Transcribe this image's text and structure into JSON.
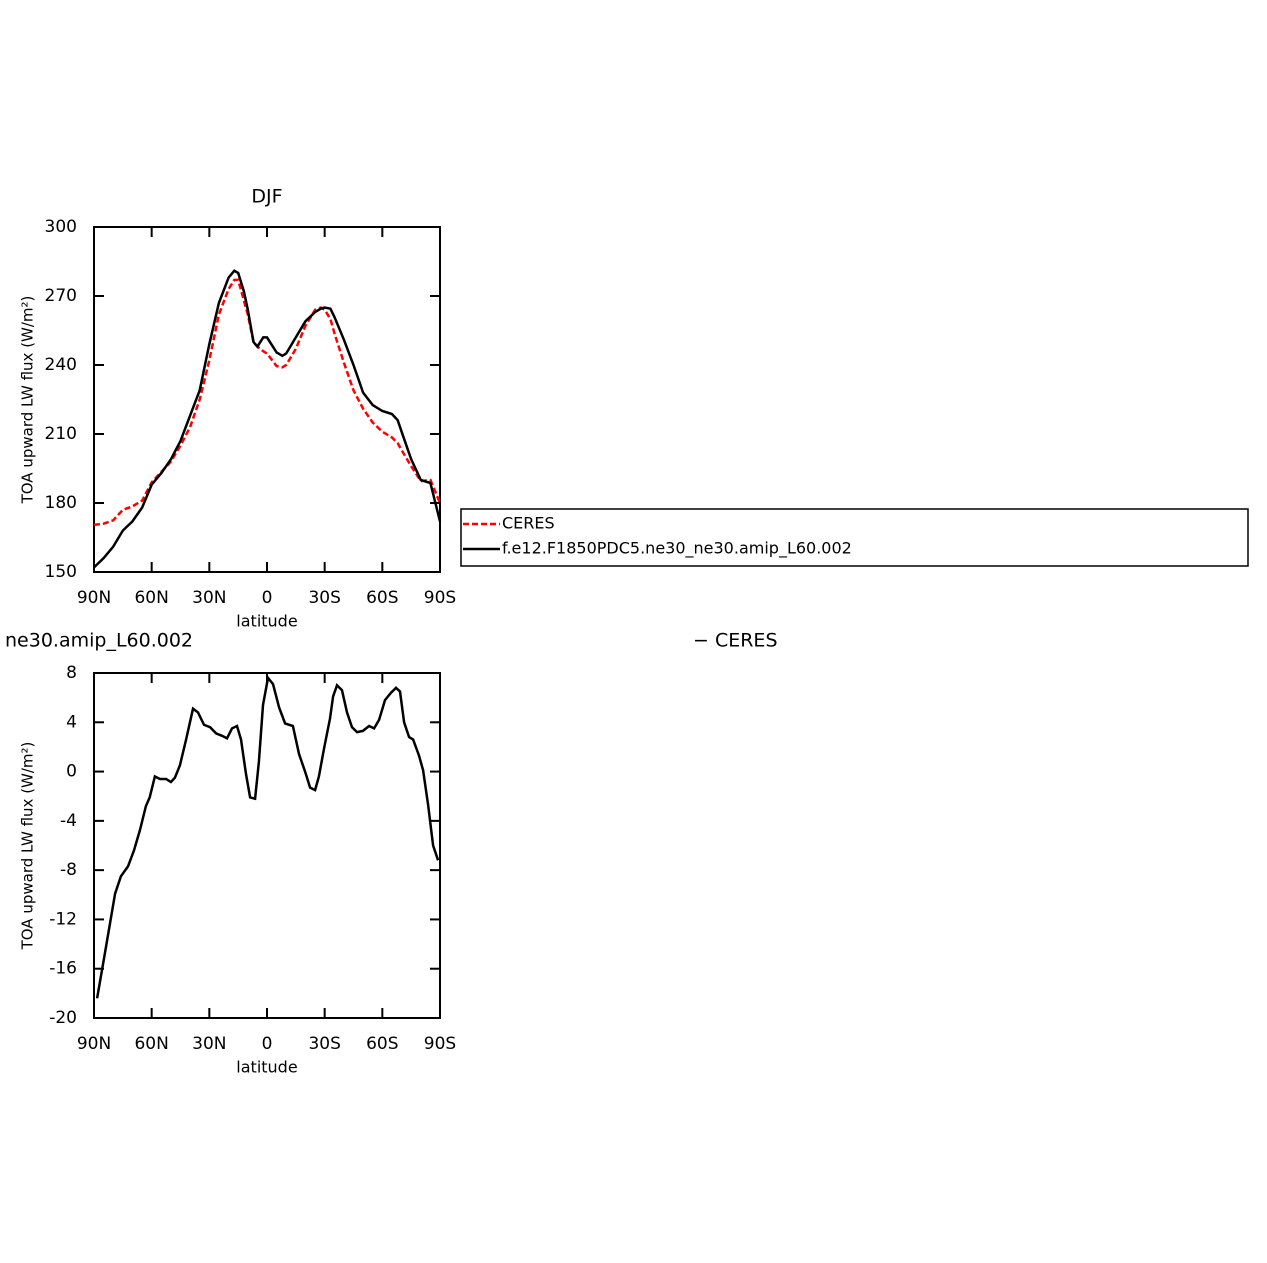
{
  "chart_data": [
    {
      "type": "line",
      "title": "DJF",
      "xlabel": "latitude",
      "ylabel": "TOA upward LW flux (W/m²)",
      "x": [
        90,
        85,
        80,
        75,
        70,
        65,
        60,
        55,
        50,
        45,
        40,
        35,
        30,
        25,
        20,
        17,
        15,
        12,
        10,
        7,
        5,
        2,
        0,
        -5,
        -8,
        -10,
        -15,
        -20,
        -25,
        -28,
        -30,
        -33,
        -35,
        -40,
        -45,
        -50,
        -55,
        -60,
        -65,
        -68,
        -70,
        -75,
        -80,
        -85,
        -90
      ],
      "series": [
        {
          "name": "CERES",
          "color": "#ff0000",
          "dash": true,
          "values": [
            170.5,
            171,
            172.5,
            177,
            178.5,
            181,
            189,
            193.5,
            198,
            205,
            213,
            225,
            242,
            262,
            273,
            277,
            277,
            268,
            262,
            250,
            248,
            246,
            245,
            239.5,
            239,
            240,
            247,
            257,
            264,
            265,
            264,
            260,
            254,
            241,
            229,
            221,
            215,
            211,
            208.5,
            206,
            203,
            196,
            189.5,
            190,
            180
          ]
        },
        {
          "name": "f.e12.F1850PDC5.ne30_ne30.amip_L60.002",
          "color": "#000000",
          "dash": false,
          "values": [
            152,
            156,
            161,
            168,
            172,
            178,
            188,
            193,
            199,
            207,
            218,
            229,
            249,
            267,
            278,
            281,
            280,
            272,
            264,
            250,
            248,
            252,
            252,
            245.5,
            244,
            245,
            252,
            259,
            263,
            264.5,
            265,
            264.5,
            261,
            251,
            240,
            228,
            222.6,
            220,
            218.7,
            216,
            211,
            199,
            190,
            188.7,
            172
          ]
        }
      ],
      "xlim": [
        90,
        -90
      ],
      "xticks": [
        {
          "value": 90,
          "label": "90N"
        },
        {
          "value": 60,
          "label": "60N"
        },
        {
          "value": 30,
          "label": "30N"
        },
        0,
        {
          "value": -30,
          "label": "30S"
        },
        {
          "value": -60,
          "label": "60S"
        },
        {
          "value": -90,
          "label": "90S"
        }
      ],
      "ylim": [
        150,
        300
      ],
      "yticks": [
        150,
        180,
        210,
        240,
        270,
        300
      ],
      "legend": "right"
    },
    {
      "type": "line",
      "left_title": "ne30.amip_L60.002",
      "right_title": "− CERES",
      "xlabel": "latitude",
      "ylabel": "TOA upward LW flux (W/m²)",
      "x": [
        88.4,
        84.3,
        79,
        76,
        72.3,
        69.2,
        66,
        63,
        61,
        58.3,
        55.7,
        52.5,
        50,
        47.9,
        45.3,
        42.1,
        38.5,
        35.9,
        32.8,
        29.6,
        26.5,
        23.4,
        20.8,
        18.2,
        15.6,
        13.5,
        10.9,
        8.8,
        6.2,
        4.2,
        2.1,
        -0.5,
        -3.1,
        -6.3,
        -9.4,
        -13.5,
        -16.7,
        -19.8,
        -22.4,
        -25,
        -27,
        -29.7,
        -32.8,
        -34.4,
        -36.4,
        -39,
        -41.6,
        -44.2,
        -46.8,
        -49.9,
        -53.1,
        -55.7,
        -58.3,
        -61.4,
        -64.5,
        -67.1,
        -69.2,
        -71.3,
        -73.9,
        -76,
        -79.1,
        -81.2,
        -83.8,
        -86.4,
        -89
      ],
      "series": [
        {
          "color": "#000000",
          "dash": false,
          "values": [
            -18.4,
            -14.7,
            -9.9,
            -8.5,
            -7.7,
            -6.4,
            -4.7,
            -2.8,
            -2.1,
            -0.4,
            -0.6,
            -0.6,
            -0.85,
            -0.5,
            0.5,
            2.6,
            5.1,
            4.8,
            3.8,
            3.6,
            3.1,
            2.9,
            2.7,
            3.5,
            3.7,
            2.6,
            -0.2,
            -2.1,
            -2.2,
            0.8,
            5.4,
            7.6,
            7.1,
            5.2,
            3.9,
            3.7,
            1.4,
            0,
            -1.3,
            -1.5,
            -0.4,
            1.9,
            4.3,
            6.1,
            7.0,
            6.6,
            4.8,
            3.6,
            3.2,
            3.3,
            3.7,
            3.5,
            4.2,
            5.8,
            6.4,
            6.8,
            6.5,
            4,
            2.8,
            2.6,
            1.3,
            0.1,
            -2.7,
            -6,
            -7.2
          ]
        }
      ],
      "xlim": [
        90,
        -90
      ],
      "xticks": [
        {
          "value": 90,
          "label": "90N"
        },
        {
          "value": 60,
          "label": "60N"
        },
        {
          "value": 30,
          "label": "30N"
        },
        0,
        {
          "value": -30,
          "label": "30S"
        },
        {
          "value": -60,
          "label": "60S"
        },
        {
          "value": -90,
          "label": "90S"
        }
      ],
      "ylim": [
        -20,
        8
      ],
      "yticks": [
        -20,
        -16,
        -12,
        -8,
        -4,
        0,
        4,
        8
      ]
    }
  ]
}
